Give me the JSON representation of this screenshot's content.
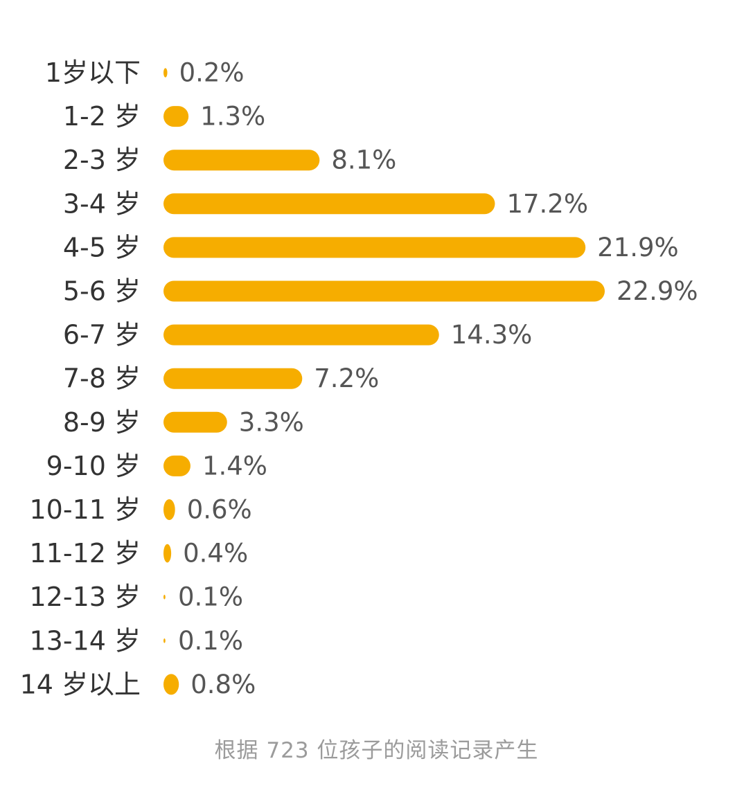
{
  "colors": {
    "bar": "#f6ad00",
    "category_text": "#333333",
    "value_text": "#555555",
    "footnote_text": "#9b9b9b"
  },
  "chart_data": {
    "type": "bar",
    "orientation": "horizontal",
    "categories": [
      "1岁以下",
      "1-2 岁",
      "2-3 岁",
      "3-4 岁",
      "4-5 岁",
      "5-6 岁",
      "6-7 岁",
      "7-8 岁",
      "8-9 岁",
      "9-10 岁",
      "10-11 岁",
      "11-12 岁",
      "12-13 岁",
      "13-14 岁",
      "14 岁以上"
    ],
    "values": [
      0.2,
      1.3,
      8.1,
      17.2,
      21.9,
      22.9,
      14.3,
      7.2,
      3.3,
      1.4,
      0.6,
      0.4,
      0.1,
      0.1,
      0.8
    ],
    "value_labels": [
      "0.2%",
      "1.3%",
      "8.1%",
      "17.2%",
      "21.9%",
      "22.9%",
      "14.3%",
      "7.2%",
      "3.3%",
      "1.4%",
      "0.6%",
      "0.4%",
      "0.1%",
      "0.1%",
      "0.8%"
    ],
    "value_unit": "%",
    "grid": false,
    "axes_visible": false
  },
  "footnote": "根据 723 位孩子的阅读记录产生"
}
